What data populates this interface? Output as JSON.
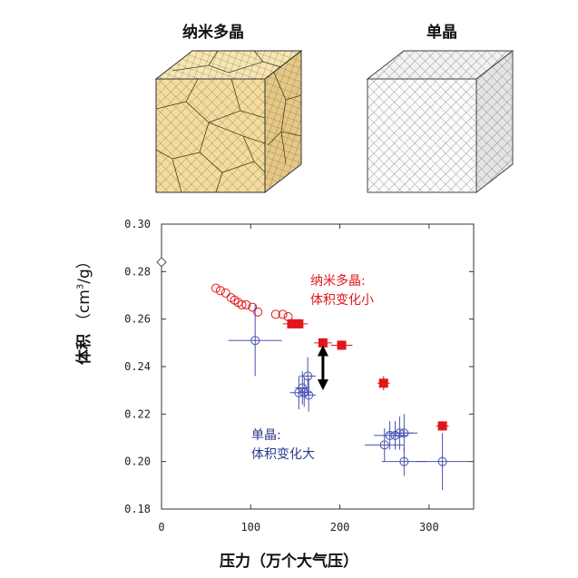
{
  "figure": {
    "left_cube_title": "纳米多晶",
    "right_cube_title": "单晶",
    "annotation_nano": [
      "纳米多晶:",
      "体积变化小"
    ],
    "annotation_single": [
      "单晶:",
      "体积变化大"
    ],
    "colors": {
      "nano": "#e0161b",
      "single": "#4a52b0",
      "arrow": "#000000"
    }
  },
  "chart_data": {
    "type": "scatter",
    "xlabel": "压力（万个大气压）",
    "ylabel_prefix": "体积",
    "ylabel_unit": "（cm",
    "ylabel_sup": "3",
    "ylabel_tail": "/g）",
    "xlim": [
      0,
      350
    ],
    "ylim": [
      0.18,
      0.3
    ],
    "x_ticks": [
      "0",
      "100",
      "200",
      "300"
    ],
    "x_tick_values": [
      0,
      100,
      200,
      300
    ],
    "y_ticks": [
      "0.18",
      "0.20",
      "0.22",
      "0.24",
      "0.26",
      "0.28",
      "0.30"
    ],
    "y_tick_values": [
      0.18,
      0.2,
      0.22,
      0.24,
      0.26,
      0.28,
      0.3
    ],
    "reference_point": {
      "x": 0,
      "y": 0.284,
      "marker": "open-diamond"
    },
    "series": [
      {
        "marker": "open-circle",
        "color": "#e0161b",
        "points": [
          {
            "x": 61,
            "y": 0.273,
            "xerr": 0,
            "yerr": 0
          },
          {
            "x": 66,
            "y": 0.272,
            "xerr": 0,
            "yerr": 0
          },
          {
            "x": 72,
            "y": 0.271,
            "xerr": 0,
            "yerr": 0
          },
          {
            "x": 78,
            "y": 0.269,
            "xerr": 0,
            "yerr": 0
          },
          {
            "x": 82,
            "y": 0.268,
            "xerr": 0,
            "yerr": 0
          },
          {
            "x": 86,
            "y": 0.267,
            "xerr": 0,
            "yerr": 0
          },
          {
            "x": 90,
            "y": 0.266,
            "xerr": 0,
            "yerr": 0
          },
          {
            "x": 95,
            "y": 0.266,
            "xerr": 0,
            "yerr": 0
          },
          {
            "x": 102,
            "y": 0.265,
            "xerr": 0,
            "yerr": 0
          },
          {
            "x": 108,
            "y": 0.263,
            "xerr": 0,
            "yerr": 0
          },
          {
            "x": 128,
            "y": 0.262,
            "xerr": 0,
            "yerr": 0
          },
          {
            "x": 136,
            "y": 0.262,
            "xerr": 0,
            "yerr": 0
          },
          {
            "x": 142,
            "y": 0.261,
            "xerr": 0,
            "yerr": 0
          }
        ]
      },
      {
        "marker": "filled-square",
        "color": "#e0161b",
        "points": [
          {
            "x": 146,
            "y": 0.258,
            "xerr": 10,
            "yerr": 0.002
          },
          {
            "x": 154,
            "y": 0.258,
            "xerr": 10,
            "yerr": 0.002
          },
          {
            "x": 181,
            "y": 0.25,
            "xerr": 10,
            "yerr": 0.002
          },
          {
            "x": 202,
            "y": 0.249,
            "xerr": 12,
            "yerr": 0.002
          },
          {
            "x": 249,
            "y": 0.233,
            "xerr": 7,
            "yerr": 0.003
          },
          {
            "x": 315,
            "y": 0.215,
            "xerr": 7,
            "yerr": 0.002
          }
        ]
      },
      {
        "marker": "open-circle",
        "color": "#4a52b0",
        "points": [
          {
            "x": 105,
            "y": 0.251,
            "xerr": 30,
            "yerr": 0.015
          },
          {
            "x": 154,
            "y": 0.229,
            "xerr": 10,
            "yerr": 0.007
          },
          {
            "x": 158,
            "y": 0.231,
            "xerr": 8,
            "yerr": 0.007
          },
          {
            "x": 160,
            "y": 0.229,
            "xerr": 8,
            "yerr": 0.006
          },
          {
            "x": 164,
            "y": 0.236,
            "xerr": 9,
            "yerr": 0.008
          },
          {
            "x": 165,
            "y": 0.228,
            "xerr": 8,
            "yerr": 0.007
          },
          {
            "x": 250,
            "y": 0.207,
            "xerr": 22,
            "yerr": 0.007
          },
          {
            "x": 256,
            "y": 0.211,
            "xerr": 18,
            "yerr": 0.006
          },
          {
            "x": 262,
            "y": 0.211,
            "xerr": 15,
            "yerr": 0.006
          },
          {
            "x": 267,
            "y": 0.212,
            "xerr": 15,
            "yerr": 0.007
          },
          {
            "x": 272,
            "y": 0.212,
            "xerr": 15,
            "yerr": 0.008
          },
          {
            "x": 272,
            "y": 0.2,
            "xerr": 25,
            "yerr": 0.006
          },
          {
            "x": 315,
            "y": 0.2,
            "xerr": 30,
            "yerr": 0.012
          }
        ]
      }
    ],
    "arrow": {
      "x": 181,
      "y_from": 0.249,
      "y_to": 0.23,
      "double_headed": true
    }
  }
}
